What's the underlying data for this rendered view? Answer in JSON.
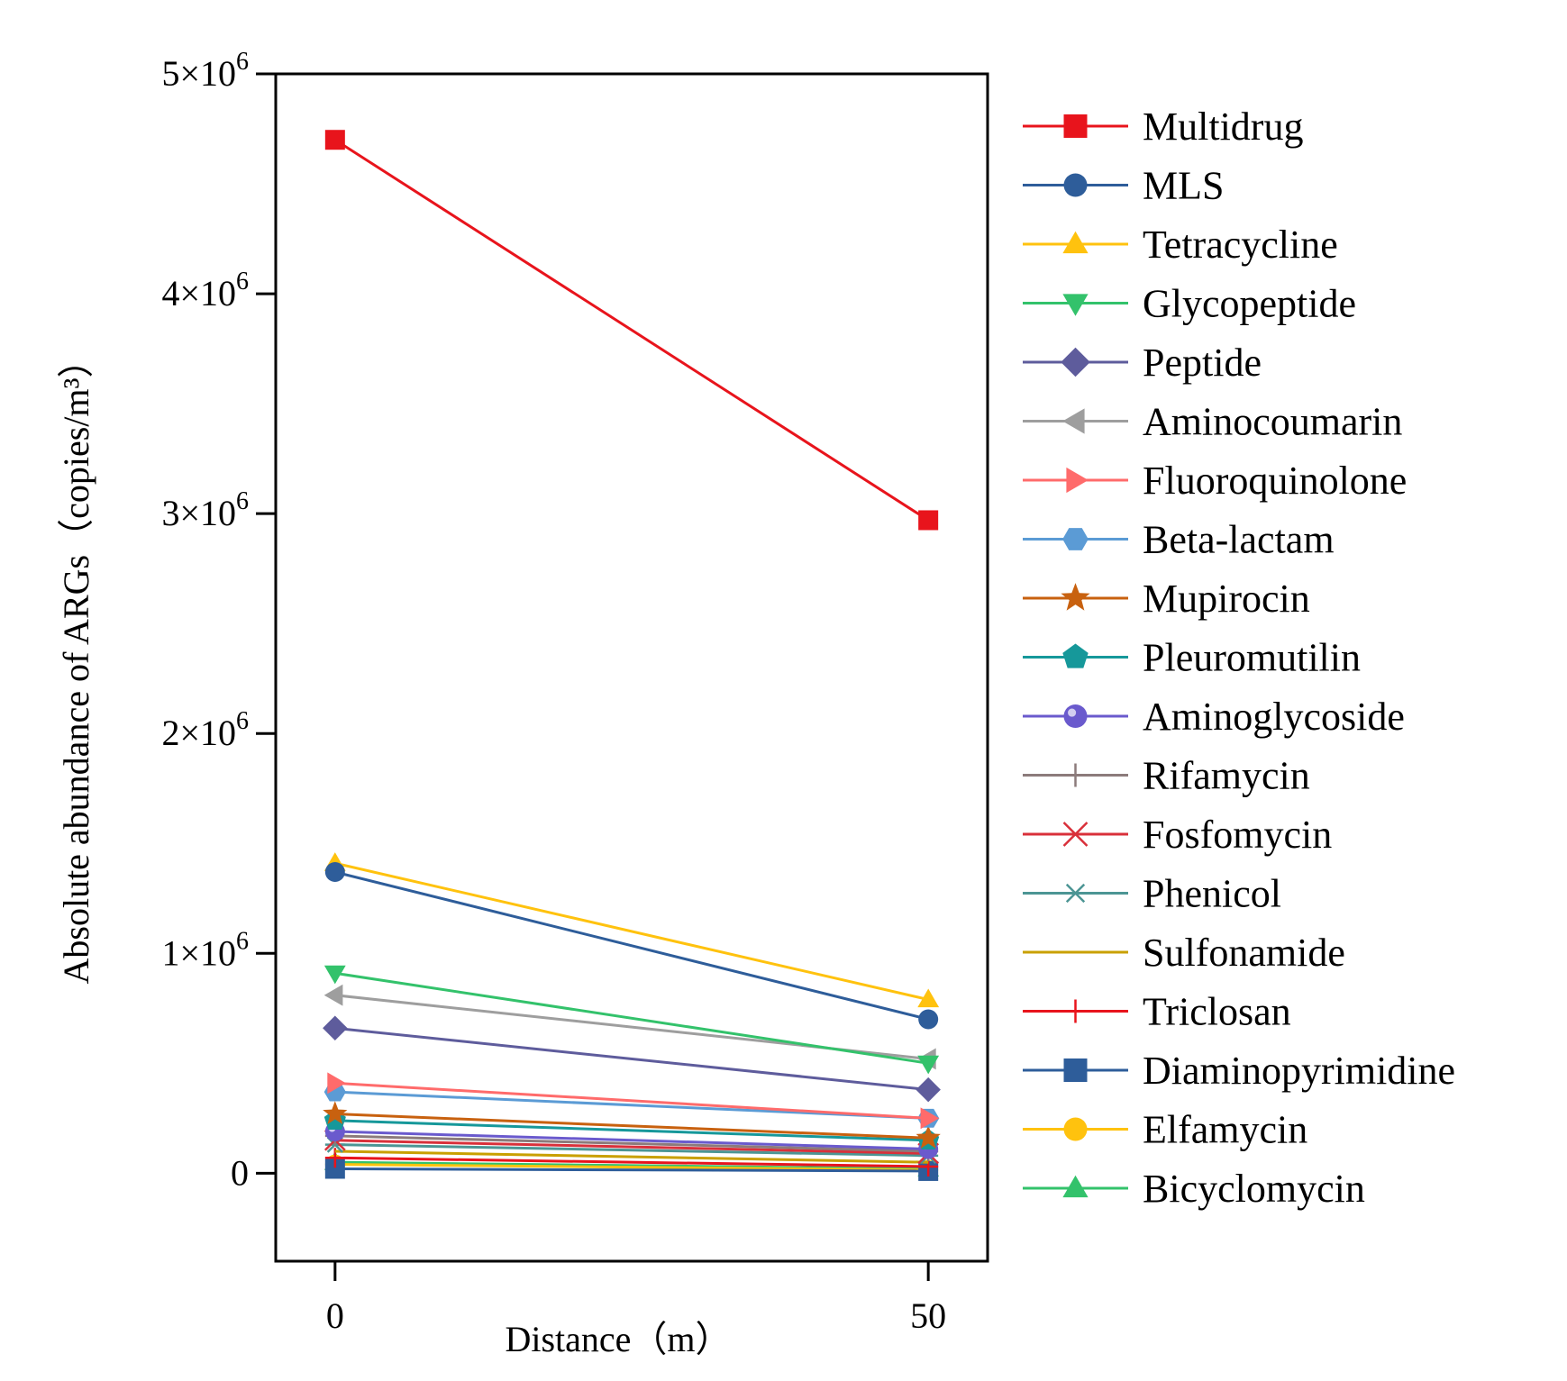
{
  "chart_data": {
    "type": "line",
    "title": "",
    "xlabel": "Distance（m）",
    "ylabel": "Absolute abundance of ARGs（copies/m³）",
    "x": [
      0,
      50
    ],
    "x_tick_labels": [
      "0",
      "50"
    ],
    "xlim": [
      -5,
      55
    ],
    "ylim": [
      -400000,
      5000000
    ],
    "y_ticks": [
      0,
      1000000,
      2000000,
      3000000,
      4000000,
      5000000
    ],
    "y_tick_labels": [
      {
        "mantissa": "0",
        "exp": ""
      },
      {
        "mantissa": "1×10",
        "exp": "6"
      },
      {
        "mantissa": "2×10",
        "exp": "6"
      },
      {
        "mantissa": "3×10",
        "exp": "6"
      },
      {
        "mantissa": "4×10",
        "exp": "6"
      },
      {
        "mantissa": "5×10",
        "exp": "6"
      }
    ],
    "legend_position": "right",
    "grid": false,
    "series": [
      {
        "name": "Multidrug",
        "color": "#E8141C",
        "marker": "square",
        "values": [
          4700000,
          2970000
        ]
      },
      {
        "name": "MLS",
        "color": "#2E5D9A",
        "marker": "circle",
        "values": [
          1370000,
          700000
        ]
      },
      {
        "name": "Tetracycline",
        "color": "#FFC20E",
        "marker": "triangle-up",
        "values": [
          1410000,
          790000
        ]
      },
      {
        "name": "Glycopeptide",
        "color": "#33C26B",
        "marker": "triangle-down",
        "values": [
          910000,
          500000
        ]
      },
      {
        "name": "Peptide",
        "color": "#5E5C9C",
        "marker": "diamond",
        "values": [
          660000,
          380000
        ]
      },
      {
        "name": "Aminocoumarin",
        "color": "#9E9E9E",
        "marker": "triangle-left",
        "values": [
          810000,
          520000
        ]
      },
      {
        "name": "Fluoroquinolone",
        "color": "#FF6B6B",
        "marker": "triangle-right",
        "values": [
          410000,
          250000
        ]
      },
      {
        "name": "Beta-lactam",
        "color": "#5B9BD5",
        "marker": "hexagon",
        "values": [
          370000,
          250000
        ]
      },
      {
        "name": "Mupirocin",
        "color": "#C8610F",
        "marker": "star",
        "values": [
          270000,
          160000
        ]
      },
      {
        "name": "Pleuromutilin",
        "color": "#16989A",
        "marker": "pentagon",
        "values": [
          240000,
          150000
        ]
      },
      {
        "name": "Aminoglycoside",
        "color": "#6A5ACD",
        "marker": "sphere",
        "values": [
          190000,
          110000
        ]
      },
      {
        "name": "Rifamycin",
        "color": "#8C7B7B",
        "marker": "plus",
        "values": [
          170000,
          100000
        ]
      },
      {
        "name": "Fosfomycin",
        "color": "#D9303A",
        "marker": "x",
        "values": [
          150000,
          90000
        ]
      },
      {
        "name": "Phenicol",
        "color": "#4C9594",
        "marker": "asterisk",
        "values": [
          130000,
          80000
        ]
      },
      {
        "name": "Sulfonamide",
        "color": "#C9A000",
        "marker": "none",
        "values": [
          100000,
          50000
        ]
      },
      {
        "name": "Triclosan",
        "color": "#E8141C",
        "marker": "plus",
        "values": [
          70000,
          30000
        ]
      },
      {
        "name": "Diaminopyrimidine",
        "color": "#2E5D9A",
        "marker": "square",
        "values": [
          20000,
          10000
        ]
      },
      {
        "name": "Elfamycin",
        "color": "#FFC20E",
        "marker": "circle",
        "values": [
          40000,
          15000
        ]
      },
      {
        "name": "Bicyclomycin",
        "color": "#33C26B",
        "marker": "triangle-up",
        "values": [
          50000,
          20000
        ]
      }
    ]
  }
}
